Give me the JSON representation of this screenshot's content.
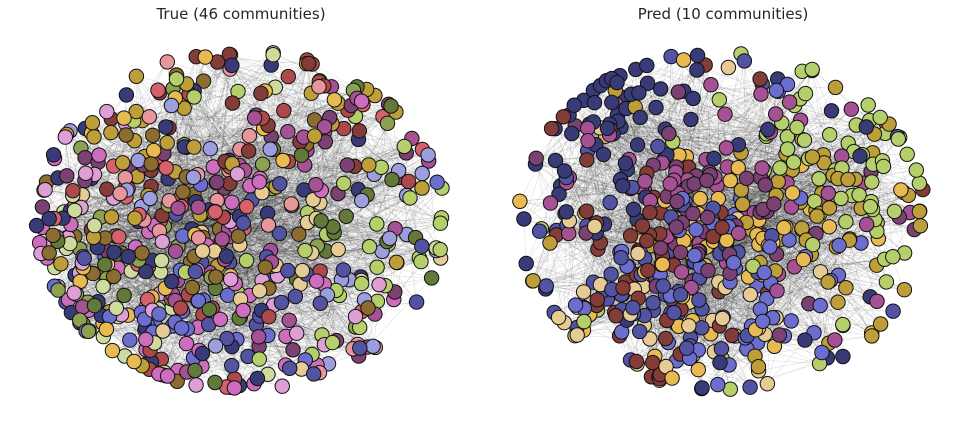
{
  "panels": {
    "left": {
      "title": "True (46 communities)",
      "communities": 46
    },
    "right": {
      "title": "Pred (10 communities)",
      "communities": 10
    }
  },
  "palette": [
    "#e7969c",
    "#d6616b",
    "#ad494a",
    "#843c39",
    "#7b4173",
    "#a55194",
    "#ce6dbd",
    "#de9ed6",
    "#9c9ede",
    "#6b6ecf",
    "#5254a3",
    "#393b79",
    "#b5cf6b",
    "#8ca252",
    "#637939",
    "#cedb9c",
    "#e7cb94",
    "#e7ba52",
    "#bd9e39",
    "#8c6d31"
  ],
  "colors": {
    "node_edge": "#111111",
    "edge_line": "#000000",
    "title_text": "#262626",
    "background": "#ffffff"
  }
}
